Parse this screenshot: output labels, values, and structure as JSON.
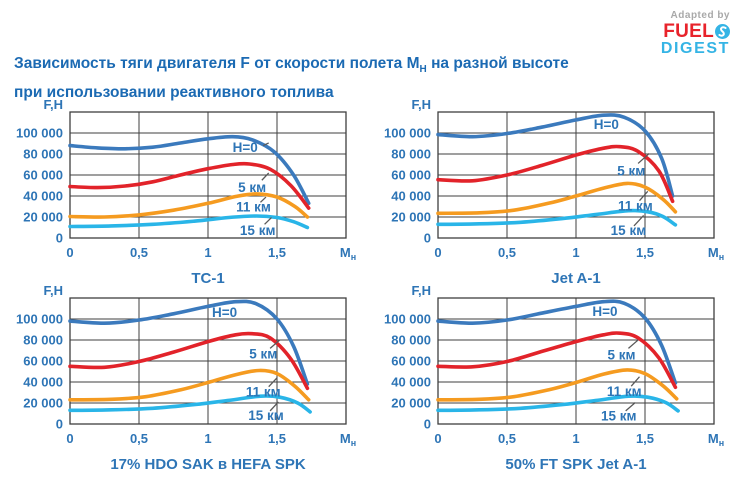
{
  "header": {
    "title_prefix": "Зависимость тяги двигателя F от скорости полета М",
    "title_sub": "Н",
    "title_suffix": " на разной высоте",
    "title_line2": "при использовании реактивного топлива"
  },
  "logo": {
    "adapted_by": "Adapted by",
    "fuel": "FUEL",
    "digest": "DIGEST",
    "icon": "s-swirl-icon"
  },
  "colors": {
    "title_text": "#1b6ab3",
    "axis_text": "#2e75b6",
    "grid": "#3f3f3f",
    "leader": "#595959",
    "series_h0": "#3b7abd",
    "series_5km": "#e2232a",
    "series_11km": "#f59b20",
    "series_15km": "#29b5e8",
    "logo_fuel": "#e8232b",
    "logo_digest": "#35b4e5",
    "logo_adapted": "#a9a9a9"
  },
  "chart_data": [
    {
      "type": "line",
      "title": "ТС-1",
      "ylabel": "F,Н",
      "xlabel_base": "М",
      "xlabel_sub": "н",
      "xlim": [
        0,
        2.0
      ],
      "ylim": [
        0,
        120000
      ],
      "x_grid_step": 0.5,
      "y_grid_step": 20000,
      "grid": true,
      "x_ticks": [
        "0",
        "0,5",
        "1",
        "1,5"
      ],
      "y_ticks": [
        "0",
        "20 000",
        "40 000",
        "60 000",
        "80 000",
        "100 000"
      ],
      "series": [
        {
          "key": "h0",
          "name": "H=0",
          "color": "#3b7abd",
          "points": [
            [
              0,
              88000
            ],
            [
              0.2,
              85800
            ],
            [
              0.4,
              85000
            ],
            [
              0.6,
              86500
            ],
            [
              0.8,
              90500
            ],
            [
              1.0,
              94500
            ],
            [
              1.18,
              96500
            ],
            [
              1.32,
              93500
            ],
            [
              1.48,
              82000
            ],
            [
              1.62,
              60000
            ],
            [
              1.73,
              33000
            ]
          ]
        },
        {
          "key": "5km",
          "name": "5 км",
          "color": "#e2232a",
          "points": [
            [
              0,
              49000
            ],
            [
              0.2,
              48000
            ],
            [
              0.4,
              49500
            ],
            [
              0.6,
              53500
            ],
            [
              0.8,
              60000
            ],
            [
              1.0,
              66000
            ],
            [
              1.18,
              70000
            ],
            [
              1.3,
              70500
            ],
            [
              1.45,
              65500
            ],
            [
              1.6,
              50000
            ],
            [
              1.73,
              28500
            ]
          ]
        },
        {
          "key": "11km",
          "name": "11 км",
          "color": "#f59b20",
          "points": [
            [
              0,
              20500
            ],
            [
              0.25,
              20000
            ],
            [
              0.5,
              22000
            ],
            [
              0.75,
              26500
            ],
            [
              1.0,
              33000
            ],
            [
              1.2,
              39500
            ],
            [
              1.35,
              42000
            ],
            [
              1.5,
              39000
            ],
            [
              1.63,
              30000
            ],
            [
              1.72,
              20000
            ]
          ]
        },
        {
          "key": "15km",
          "name": "15 км",
          "color": "#29b5e8",
          "points": [
            [
              0,
              11000
            ],
            [
              0.3,
              11500
            ],
            [
              0.6,
              13000
            ],
            [
              0.9,
              16000
            ],
            [
              1.15,
              19500
            ],
            [
              1.35,
              21000
            ],
            [
              1.5,
              19500
            ],
            [
              1.62,
              15500
            ],
            [
              1.72,
              10000
            ]
          ]
        }
      ],
      "labels": [
        {
          "text": "H=0",
          "x": 1.27,
          "y": 86000,
          "leader": [
            1.4,
            88000,
            1.44,
            90500
          ]
        },
        {
          "text": "5 км",
          "x": 1.32,
          "y": 48000,
          "leader": [
            1.39,
            55000,
            1.44,
            62000
          ]
        },
        {
          "text": "11 км",
          "x": 1.33,
          "y": 29500,
          "leader": [
            1.38,
            34000,
            1.42,
            39000
          ]
        },
        {
          "text": "15 км",
          "x": 1.36,
          "y": 7000,
          "leader": [
            1.41,
            13000,
            1.46,
            19500
          ]
        }
      ]
    },
    {
      "type": "line",
      "title": "Jet A-1",
      "ylabel": "F,Н",
      "xlabel_base": "М",
      "xlabel_sub": "н",
      "xlim": [
        0,
        2.0
      ],
      "ylim": [
        0,
        120000
      ],
      "x_grid_step": 0.5,
      "y_grid_step": 20000,
      "grid": true,
      "x_ticks": [
        "0",
        "0,5",
        "1",
        "1,5"
      ],
      "y_ticks": [
        "0",
        "20 000",
        "40 000",
        "60 000",
        "80 000",
        "100 000"
      ],
      "series": [
        {
          "key": "h0",
          "name": "H=0",
          "color": "#3b7abd",
          "points": [
            [
              0,
              98500
            ],
            [
              0.25,
              96500
            ],
            [
              0.5,
              99500
            ],
            [
              0.75,
              105500
            ],
            [
              1.0,
              112500
            ],
            [
              1.2,
              117000
            ],
            [
              1.35,
              115000
            ],
            [
              1.5,
              102000
            ],
            [
              1.62,
              76000
            ],
            [
              1.7,
              40000
            ]
          ]
        },
        {
          "key": "5km",
          "name": "5 км",
          "color": "#e2232a",
          "points": [
            [
              0,
              55500
            ],
            [
              0.25,
              54500
            ],
            [
              0.5,
              60000
            ],
            [
              0.75,
              69000
            ],
            [
              1.0,
              79000
            ],
            [
              1.2,
              85500
            ],
            [
              1.32,
              87000
            ],
            [
              1.45,
              82500
            ],
            [
              1.6,
              64000
            ],
            [
              1.7,
              35000
            ]
          ]
        },
        {
          "key": "11km",
          "name": "11 км",
          "color": "#f59b20",
          "points": [
            [
              0,
              23500
            ],
            [
              0.3,
              24000
            ],
            [
              0.55,
              26500
            ],
            [
              0.8,
              33000
            ],
            [
              1.0,
              40000
            ],
            [
              1.2,
              47500
            ],
            [
              1.37,
              52000
            ],
            [
              1.5,
              48500
            ],
            [
              1.63,
              37000
            ],
            [
              1.72,
              25000
            ]
          ]
        },
        {
          "key": "15km",
          "name": "15 км",
          "color": "#29b5e8",
          "points": [
            [
              0,
              13000
            ],
            [
              0.3,
              13500
            ],
            [
              0.6,
              15000
            ],
            [
              0.9,
              18500
            ],
            [
              1.15,
              22500
            ],
            [
              1.38,
              26000
            ],
            [
              1.52,
              25000
            ],
            [
              1.63,
              20500
            ],
            [
              1.72,
              12500
            ]
          ]
        }
      ],
      "labels": [
        {
          "text": "H=0",
          "x": 1.22,
          "y": 108000
        },
        {
          "text": "5 км",
          "x": 1.4,
          "y": 64000,
          "leader": [
            1.45,
            71000,
            1.53,
            80500
          ]
        },
        {
          "text": "11 км",
          "x": 1.43,
          "y": 30500,
          "leader": [
            1.46,
            35500,
            1.52,
            44500
          ]
        },
        {
          "text": "15 км",
          "x": 1.38,
          "y": 7000,
          "leader": [
            1.42,
            11500,
            1.49,
            21500
          ]
        }
      ]
    },
    {
      "type": "line",
      "title": "17% HDO SAK в HEFA SPK",
      "ylabel": "F,Н",
      "xlabel_base": "М",
      "xlabel_sub": "н",
      "xlim": [
        0,
        2.0
      ],
      "ylim": [
        0,
        120000
      ],
      "x_grid_step": 0.5,
      "y_grid_step": 20000,
      "grid": true,
      "x_ticks": [
        "0",
        "0,5",
        "1",
        "1,5"
      ],
      "y_ticks": [
        "0",
        "20 000",
        "40 000",
        "60 000",
        "80 000",
        "100 000"
      ],
      "series": [
        {
          "key": "h0",
          "name": "H=0",
          "color": "#3b7abd",
          "points": [
            [
              0,
              98000
            ],
            [
              0.25,
              96000
            ],
            [
              0.5,
              99000
            ],
            [
              0.75,
              105000
            ],
            [
              1.0,
              112000
            ],
            [
              1.2,
              116500
            ],
            [
              1.35,
              114500
            ],
            [
              1.5,
              100000
            ],
            [
              1.62,
              74000
            ],
            [
              1.72,
              38000
            ]
          ]
        },
        {
          "key": "5km",
          "name": "5 км",
          "color": "#e2232a",
          "points": [
            [
              0,
              55000
            ],
            [
              0.25,
              54000
            ],
            [
              0.5,
              59500
            ],
            [
              0.75,
              68500
            ],
            [
              1.0,
              78500
            ],
            [
              1.2,
              85000
            ],
            [
              1.32,
              86000
            ],
            [
              1.45,
              82000
            ],
            [
              1.6,
              62000
            ],
            [
              1.72,
              34000
            ]
          ]
        },
        {
          "key": "11km",
          "name": "11 км",
          "color": "#f59b20",
          "points": [
            [
              0,
              23000
            ],
            [
              0.3,
              23500
            ],
            [
              0.55,
              26000
            ],
            [
              0.8,
              32500
            ],
            [
              1.0,
              39500
            ],
            [
              1.2,
              47000
            ],
            [
              1.37,
              51000
            ],
            [
              1.5,
              48000
            ],
            [
              1.63,
              36000
            ],
            [
              1.73,
              23000
            ]
          ]
        },
        {
          "key": "15km",
          "name": "15 км",
          "color": "#29b5e8",
          "points": [
            [
              0,
              13000
            ],
            [
              0.3,
              13500
            ],
            [
              0.6,
              15000
            ],
            [
              0.9,
              18500
            ],
            [
              1.15,
              22500
            ],
            [
              1.38,
              26500
            ],
            [
              1.52,
              25500
            ],
            [
              1.65,
              20000
            ],
            [
              1.74,
              11500
            ]
          ]
        }
      ],
      "labels": [
        {
          "text": "H=0",
          "x": 1.12,
          "y": 106000
        },
        {
          "text": "5 км",
          "x": 1.4,
          "y": 66500,
          "leader": [
            1.45,
            72000,
            1.52,
            80000
          ]
        },
        {
          "text": "11 км",
          "x": 1.4,
          "y": 30500,
          "leader": [
            1.44,
            35500,
            1.5,
            44000
          ]
        },
        {
          "text": "15 км",
          "x": 1.42,
          "y": 8000,
          "leader": [
            1.45,
            12500,
            1.51,
            21000
          ]
        }
      ]
    },
    {
      "type": "line",
      "title": "50% FT SPK Jet A-1",
      "ylabel": "F,Н",
      "xlabel_base": "М",
      "xlabel_sub": "н",
      "xlim": [
        0,
        2.0
      ],
      "ylim": [
        0,
        120000
      ],
      "x_grid_step": 0.5,
      "y_grid_step": 20000,
      "grid": true,
      "x_ticks": [
        "0",
        "0,5",
        "1",
        "1,5"
      ],
      "y_ticks": [
        "0",
        "20 000",
        "40 000",
        "60 000",
        "80 000",
        "100 000"
      ],
      "series": [
        {
          "key": "h0",
          "name": "H=0",
          "color": "#3b7abd",
          "points": [
            [
              0,
              98000
            ],
            [
              0.25,
              96000
            ],
            [
              0.5,
              99000
            ],
            [
              0.75,
              105500
            ],
            [
              1.0,
              112000
            ],
            [
              1.2,
              116500
            ],
            [
              1.35,
              115000
            ],
            [
              1.5,
              101000
            ],
            [
              1.62,
              75000
            ],
            [
              1.72,
              39000
            ]
          ]
        },
        {
          "key": "5km",
          "name": "5 км",
          "color": "#e2232a",
          "points": [
            [
              0,
              55000
            ],
            [
              0.25,
              54500
            ],
            [
              0.5,
              59500
            ],
            [
              0.75,
              69000
            ],
            [
              1.0,
              78500
            ],
            [
              1.2,
              85000
            ],
            [
              1.32,
              86500
            ],
            [
              1.45,
              82000
            ],
            [
              1.6,
              63000
            ],
            [
              1.72,
              35000
            ]
          ]
        },
        {
          "key": "11km",
          "name": "11 км",
          "color": "#f59b20",
          "points": [
            [
              0,
              23000
            ],
            [
              0.3,
              23500
            ],
            [
              0.55,
              26000
            ],
            [
              0.8,
              32500
            ],
            [
              1.0,
              39500
            ],
            [
              1.2,
              47500
            ],
            [
              1.37,
              51500
            ],
            [
              1.5,
              48000
            ],
            [
              1.63,
              36500
            ],
            [
              1.73,
              24000
            ]
          ]
        },
        {
          "key": "15km",
          "name": "15 км",
          "color": "#29b5e8",
          "points": [
            [
              0,
              13000
            ],
            [
              0.3,
              13500
            ],
            [
              0.6,
              15000
            ],
            [
              0.9,
              18500
            ],
            [
              1.15,
              22500
            ],
            [
              1.38,
              26500
            ],
            [
              1.52,
              25500
            ],
            [
              1.65,
              20500
            ],
            [
              1.74,
              12500
            ]
          ]
        }
      ],
      "labels": [
        {
          "text": "H=0",
          "x": 1.21,
          "y": 107000
        },
        {
          "text": "5 км",
          "x": 1.33,
          "y": 65500,
          "leader": [
            1.38,
            72000,
            1.45,
            80000
          ]
        },
        {
          "text": "11 км",
          "x": 1.35,
          "y": 31000,
          "leader": [
            1.4,
            36000,
            1.46,
            45000
          ]
        },
        {
          "text": "15 км",
          "x": 1.31,
          "y": 7500,
          "leader": [
            1.36,
            12500,
            1.43,
            20500
          ]
        }
      ]
    }
  ]
}
